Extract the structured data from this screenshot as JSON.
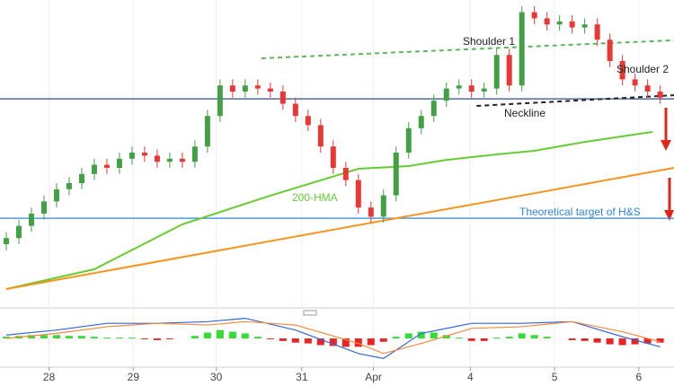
{
  "chart_data": [
    {
      "type": "candlestick",
      "open": [
        20,
        22,
        26,
        30,
        34,
        38,
        40,
        43,
        46,
        45,
        48,
        50,
        49,
        47,
        48,
        47,
        52,
        62,
        72,
        70,
        72,
        71,
        70,
        66,
        62,
        59,
        52,
        45,
        41,
        32,
        29,
        36,
        50,
        58,
        62,
        67,
        71,
        72,
        70,
        71,
        82,
        72,
        96,
        94,
        92,
        93,
        91,
        92,
        87,
        80,
        74,
        72,
        70
      ],
      "high": [
        24,
        28,
        32,
        36,
        40,
        42,
        45,
        48,
        48,
        50,
        52,
        52,
        51,
        50,
        50,
        54,
        64,
        74,
        74,
        74,
        74,
        73,
        72,
        68,
        64,
        61,
        54,
        47,
        43,
        34,
        38,
        52,
        60,
        64,
        69,
        73,
        74,
        74,
        73,
        84,
        84,
        98,
        98,
        96,
        95,
        95,
        94,
        94,
        89,
        82,
        76,
        74,
        72
      ],
      "low": [
        18,
        20,
        24,
        28,
        32,
        36,
        38,
        41,
        43,
        43,
        46,
        47,
        45,
        45,
        45,
        45,
        50,
        60,
        68,
        68,
        69,
        68,
        64,
        60,
        57,
        50,
        43,
        39,
        30,
        27,
        27,
        34,
        48,
        56,
        60,
        65,
        69,
        68,
        68,
        69,
        70,
        70,
        92,
        90,
        90,
        89,
        89,
        85,
        78,
        72,
        70,
        68,
        66
      ],
      "close": [
        22,
        26,
        30,
        34,
        38,
        40,
        43,
        46,
        45,
        48,
        50,
        49,
        47,
        48,
        47,
        52,
        62,
        72,
        70,
        72,
        71,
        70,
        66,
        62,
        59,
        52,
        45,
        41,
        32,
        29,
        36,
        50,
        58,
        62,
        67,
        71,
        72,
        70,
        71,
        82,
        72,
        96,
        94,
        92,
        93,
        91,
        92,
        87,
        80,
        74,
        72,
        70,
        68
      ],
      "up_color": "#43a047",
      "down_color": "#e53935",
      "xlim": [
        -0.5,
        53.1
      ],
      "ylim": [
        0,
        100
      ],
      "xticks": [
        {
          "value": 3.4,
          "label": "28"
        },
        {
          "value": 10.1,
          "label": "29"
        },
        {
          "value": 16.7,
          "label": "30"
        },
        {
          "value": 23.5,
          "label": "31"
        },
        {
          "value": 29.2,
          "label": "Apr"
        },
        {
          "value": 36.9,
          "label": "4"
        },
        {
          "value": 43.6,
          "label": "5"
        },
        {
          "value": 50.3,
          "label": "6"
        }
      ],
      "lines": [
        {
          "label": "200-HMA",
          "color": "#66cc33",
          "x": [
            0,
            7,
            14,
            21,
            28,
            32,
            35,
            39,
            42,
            46,
            51.4
          ],
          "values": [
            5.3,
            11.8,
            26.5,
            35.9,
            44.7,
            45.6,
            47.6,
            49.4,
            50.6,
            53.5,
            56.8
          ]
        },
        {
          "color": "#f7941d",
          "x": [
            0,
            53.1
          ],
          "values": [
            5.3,
            45
          ]
        },
        {
          "label": "Shoulder 1",
          "color": "#5cb85c",
          "dashed": true,
          "x": [
            20.3,
            53.1
          ],
          "values": [
            80.9,
            86.8
          ]
        },
        {
          "label": "Neckline",
          "color": "#222222",
          "dashed": true,
          "x": [
            37.4,
            53.1
          ],
          "values": [
            65.3,
            68.8
          ]
        }
      ],
      "hlines": [
        {
          "color": "#2a4f8f",
          "value": 67.6
        },
        {
          "label": "Theoretical target of H&S",
          "color": "#2e86de",
          "value": 28.5
        }
      ],
      "annotation": "Shoulder 2"
    },
    {
      "type": "macd",
      "ylim": [
        -1.5,
        1.5
      ],
      "histogram": [
        0.1,
        0.15,
        0.2,
        0.2,
        0.2,
        0.15,
        0.15,
        0.1,
        0.05,
        0.05,
        0.05,
        -0.05,
        -0.1,
        -0.05,
        0,
        0.15,
        0.35,
        0.5,
        0.4,
        0.3,
        0.1,
        -0.05,
        -0.15,
        -0.25,
        -0.3,
        -0.4,
        -0.45,
        -0.5,
        -0.5,
        -0.4,
        -0.2,
        0.1,
        0.3,
        0.4,
        0.35,
        0.2,
        0.05,
        -0.15,
        -0.15,
        0.05,
        0.1,
        0.3,
        0.2,
        0.1,
        0,
        -0.1,
        -0.15,
        -0.25,
        -0.35,
        -0.4,
        -0.35,
        -0.3,
        -0.25
      ],
      "pos_color": "#33dd33",
      "neg_color": "#ee2222",
      "lines": [
        {
          "color": "#3366dd",
          "x": [
            0,
            4,
            8,
            12,
            16,
            19,
            23,
            28,
            30,
            33,
            37,
            41,
            45,
            49,
            52
          ],
          "values": [
            0.2,
            0.5,
            0.9,
            0.9,
            1,
            1.2,
            0.5,
            -0.9,
            -1.2,
            0.3,
            0.9,
            0.9,
            1,
            0.1,
            -0.5
          ]
        },
        {
          "color": "#f58a3a",
          "x": [
            0,
            4,
            8,
            12,
            16,
            19,
            23,
            28,
            30,
            33,
            37,
            41,
            45,
            49,
            52
          ],
          "values": [
            0,
            0.3,
            0.7,
            0.9,
            0.8,
            1,
            0.8,
            -0.3,
            -0.9,
            -0.3,
            0.6,
            0.7,
            1,
            0.4,
            -0.2
          ]
        }
      ]
    }
  ]
}
